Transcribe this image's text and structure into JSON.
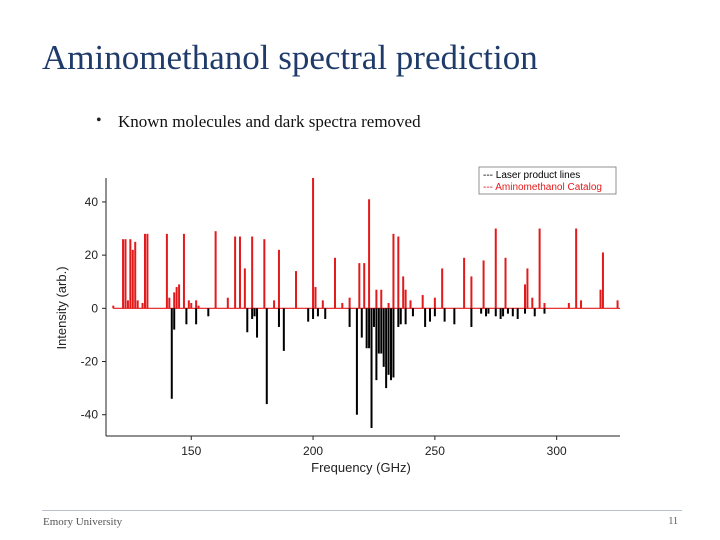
{
  "slide": {
    "title": "Aminomethanol spectral prediction",
    "bullets": [
      "Known molecules and dark spectra removed"
    ],
    "footer_left": "Emory University",
    "page_number": "11"
  },
  "chart_data": {
    "type": "bar",
    "title": "",
    "xlabel": "Frequency (GHz)",
    "ylabel": "Intensity (arb.)",
    "xlim": [
      115,
      326
    ],
    "ylim": [
      -48,
      49
    ],
    "xticks": [
      150,
      200,
      250,
      300
    ],
    "yticks": [
      -40,
      -20,
      0,
      20,
      40
    ],
    "grid": false,
    "legend_position": "top-right",
    "legend": [
      "--- Laser product lines",
      "--- Aminomethanol Catalog"
    ],
    "colors": {
      "laser": "#000000",
      "catalog": "#e31a1c"
    },
    "series": [
      {
        "name": "--- Aminomethanol Catalog",
        "x": [
          118,
          122,
          123,
          124,
          125,
          126,
          127,
          128,
          130,
          131,
          132,
          140,
          141,
          143,
          144,
          145,
          147,
          149,
          150,
          152,
          153,
          160,
          165,
          168,
          170,
          172,
          175,
          180,
          184,
          186,
          193,
          200,
          201,
          204,
          209,
          212,
          215,
          219,
          221,
          223,
          226,
          228,
          231,
          233,
          235,
          237,
          238,
          240,
          245,
          250,
          253,
          262,
          265,
          270,
          275,
          279,
          287,
          288,
          290,
          293,
          295,
          305,
          308,
          310,
          318,
          319,
          325
        ],
        "values": [
          1,
          26,
          26,
          3,
          26,
          22,
          25,
          3,
          2,
          28,
          28,
          28,
          4,
          6,
          8,
          9,
          28,
          3,
          2,
          3,
          1,
          29,
          4,
          27,
          27,
          15,
          27,
          26,
          3,
          22,
          14,
          49,
          8,
          3,
          19,
          2,
          4,
          17,
          17,
          41,
          7,
          7,
          2,
          28,
          27,
          12,
          7,
          3,
          5,
          4,
          15,
          19,
          12,
          18,
          30,
          19,
          9,
          15,
          4,
          30,
          2,
          2,
          30,
          3,
          7,
          21,
          3
        ]
      },
      {
        "name": "--- Laser product lines",
        "x": [
          142,
          143,
          148,
          152,
          157,
          173,
          175,
          176,
          177,
          181,
          186,
          188,
          198,
          200,
          202,
          205,
          215,
          218,
          220,
          222,
          223,
          224,
          225,
          226,
          227,
          228,
          229,
          230,
          231,
          232,
          233,
          235,
          236,
          238,
          241,
          246,
          248,
          250,
          254,
          258,
          265,
          269,
          271,
          272,
          275,
          277,
          278,
          280,
          282,
          284,
          287,
          291,
          295
        ],
        "values": [
          -34,
          -8,
          -6,
          -6,
          -3,
          -9,
          -4,
          -3,
          -11,
          -36,
          -7,
          -16,
          -5,
          -4,
          -3,
          -4,
          -7,
          -40,
          -11,
          -15,
          -15,
          -45,
          -7,
          -27,
          -17,
          -17,
          -22,
          -30,
          -25,
          -27,
          -26,
          -7,
          -6,
          -6,
          -3,
          -7,
          -5,
          -3,
          -5,
          -6,
          -7,
          -2,
          -3,
          -2,
          -3,
          -4,
          -3,
          -2,
          -3,
          -4,
          -2,
          -3,
          -2
        ]
      }
    ]
  }
}
